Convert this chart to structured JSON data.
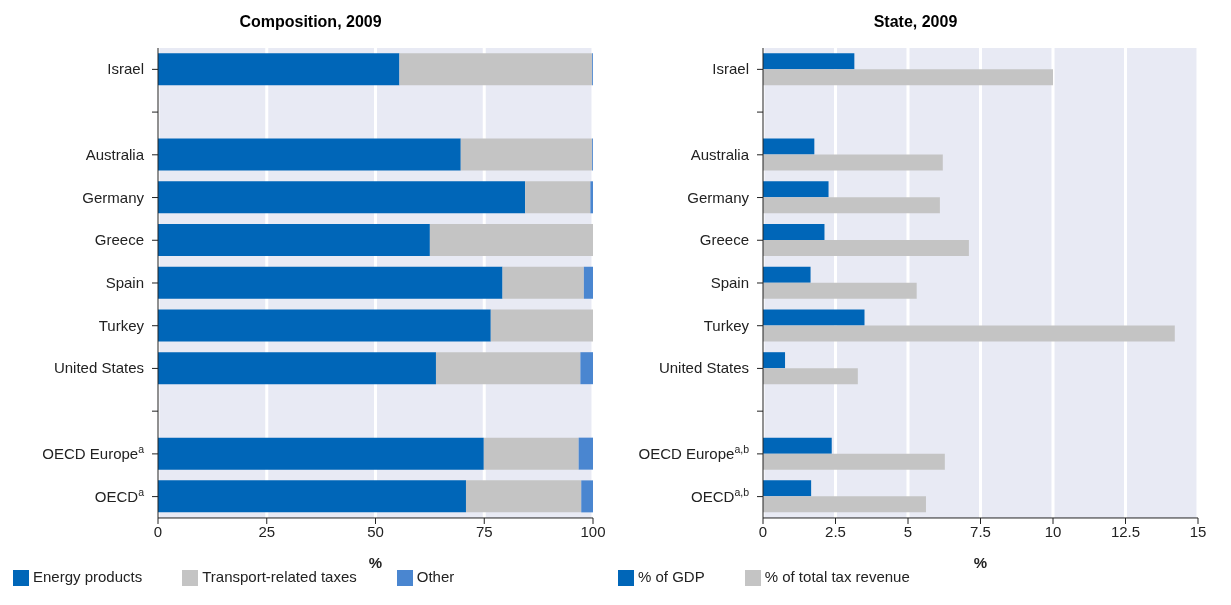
{
  "chart_data": [
    {
      "type": "bar",
      "title": "Composition, 2009",
      "orientation": "horizontal",
      "stacked": true,
      "xlabel": "%",
      "categories": [
        "Israel",
        null,
        "Australia",
        "Germany",
        "Greece",
        "Spain",
        "Turkey",
        "United States",
        null,
        "OECD Europe$^{a}$",
        "OECD$^{a}$"
      ],
      "series": [
        {
          "name": "Energy products",
          "color": "#0066b8",
          "values": [
            55.5,
            null,
            69.6,
            84.4,
            62.5,
            79.2,
            76.5,
            63.9,
            null,
            74.9,
            70.8
          ]
        },
        {
          "name": "Transport-related taxes",
          "color": "#c4c4c4",
          "values": [
            44.3,
            null,
            30.2,
            15.0,
            37.5,
            18.7,
            23.5,
            33.2,
            null,
            21.8,
            26.5
          ]
        },
        {
          "name": "Other",
          "color": "#4a86d0",
          "values": [
            0.2,
            null,
            0.2,
            0.6,
            0,
            2.1,
            0,
            2.9,
            null,
            3.3,
            2.7
          ]
        }
      ],
      "xlim": [
        0,
        100
      ],
      "xticks": [
        0,
        25,
        50,
        75,
        100
      ],
      "grid": "x",
      "legend": "bottom left"
    },
    {
      "type": "bar",
      "title": "State, 2009",
      "orientation": "horizontal",
      "xlabel": "%",
      "categories": [
        "Israel",
        null,
        "Australia",
        "Germany",
        "Greece",
        "Spain",
        "Turkey",
        "United States",
        null,
        "OECD Europe$^{a,b}$",
        "OECD$^{a,b}$"
      ],
      "series": [
        {
          "name": "% of GDP",
          "color": "#0066b8",
          "values": [
            3.15,
            null,
            1.77,
            2.26,
            2.12,
            1.64,
            3.5,
            0.76,
            null,
            2.37,
            1.66
          ]
        },
        {
          "name": "% of total tax revenue",
          "color": "#c4c4c4",
          "values": [
            10.0,
            null,
            6.2,
            6.1,
            7.1,
            5.3,
            14.2,
            3.27,
            null,
            6.27,
            5.62
          ]
        }
      ],
      "xlim": [
        0,
        15
      ],
      "xticks": [
        0,
        2.5,
        5,
        7.5,
        10,
        12.5,
        15
      ],
      "grid": "x",
      "legend": "bottom left"
    }
  ]
}
